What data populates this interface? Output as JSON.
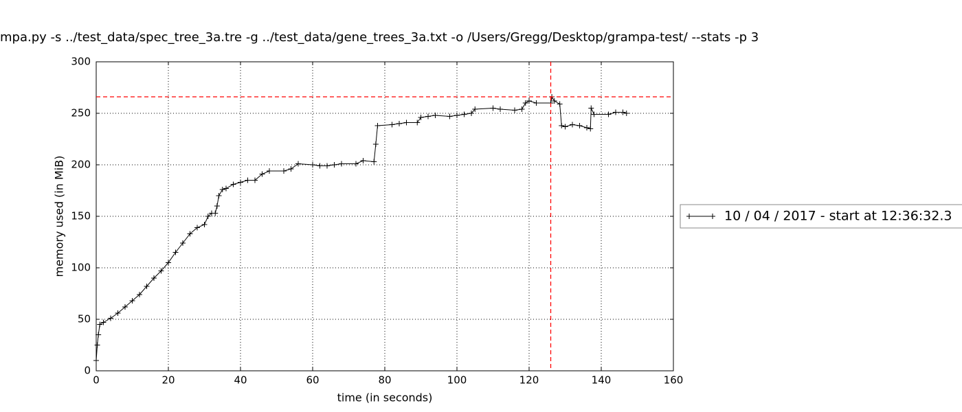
{
  "chart_data": {
    "type": "line",
    "title": "mpa.py -s ../test_data/spec_tree_3a.tre -g ../test_data/gene_trees_3a.txt -o /Users/Gregg/Desktop/grampa-test/ --stats -p 3",
    "x_label": "time (in seconds)",
    "y_label": "memory used (in MiB)",
    "x": [
      0,
      0.3,
      0.6,
      1,
      2,
      4,
      6,
      8,
      10,
      12,
      14,
      16,
      18,
      20,
      22,
      24,
      26,
      28,
      30,
      31,
      32,
      33,
      33.5,
      34,
      35,
      36,
      38,
      40,
      42,
      44,
      46,
      48,
      52,
      54,
      56,
      60,
      62,
      64,
      66,
      68,
      72,
      74,
      77,
      77.5,
      78,
      82,
      84,
      86,
      89,
      90,
      92,
      94,
      98,
      100,
      102,
      104,
      105,
      110,
      112,
      116,
      118,
      119,
      120,
      122,
      126,
      126.3,
      127,
      128.5,
      129,
      130,
      132,
      134,
      136,
      137,
      137.2,
      138,
      142,
      144,
      146,
      147
    ],
    "series": [
      {
        "name": "10 / 04 / 2017 - start at 12:36:32.3",
        "color": "#000000",
        "values": [
          10,
          25,
          35,
          45,
          47,
          51,
          56,
          62,
          68,
          74,
          82,
          90,
          97,
          105,
          115,
          124,
          133,
          139,
          142,
          150,
          153,
          153,
          160,
          170,
          176,
          177,
          181,
          183,
          185,
          185,
          191,
          194,
          194,
          196,
          201,
          200,
          199,
          199,
          200,
          201,
          201,
          204,
          203,
          220,
          238,
          239,
          240,
          241,
          241,
          246,
          247,
          248,
          247,
          248,
          249,
          250,
          254,
          255,
          254,
          253,
          254,
          260,
          262,
          260,
          260,
          266,
          262,
          259,
          238,
          237,
          239,
          238,
          236,
          235,
          255,
          249,
          249,
          251,
          251,
          250
        ]
      }
    ],
    "max_lines": {
      "x": 126,
      "y": 266,
      "color": "#ff0000"
    },
    "xlim": [
      0,
      160
    ],
    "xticks": [
      0,
      20,
      40,
      60,
      80,
      100,
      120,
      140,
      160
    ],
    "ylim": [
      0,
      300
    ],
    "yticks": [
      0,
      50,
      100,
      150,
      200,
      250,
      300
    ],
    "grid": true,
    "legend": "center right"
  }
}
